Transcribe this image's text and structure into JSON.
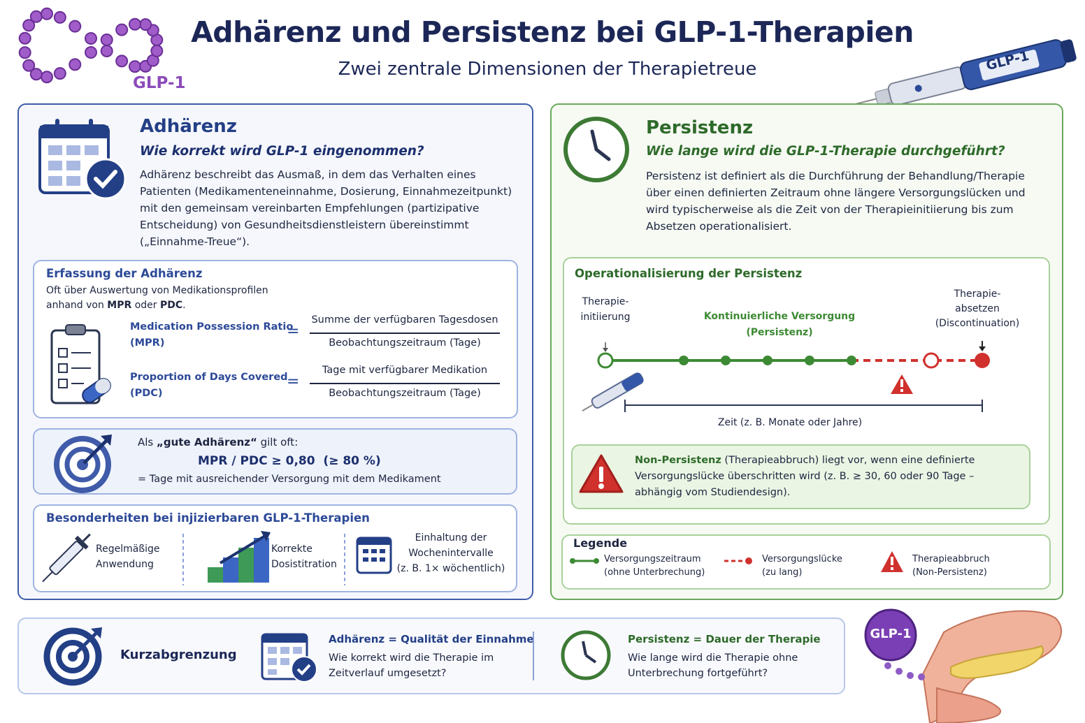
{
  "header": {
    "title": "Adhärenz und Persistenz bei GLP-1-Therapien",
    "subtitle": "Zwei zentrale Dimensionen der Therapietreue",
    "logo_label": "GLP-1",
    "pen_label": "GLP-1"
  },
  "adherence": {
    "heading": "Adhärenz",
    "question": "Wie korrekt wird GLP-1 eingenommen?",
    "description": "Adhärenz beschreibt das Ausmaß, in dem das Verhalten eines Patienten (Medikamenteneinnahme, Dosierung, Einnahmezeitpunkt) mit den gemeinsam vereinbarten Empfehlungen (partizipative Entscheidung) von Gesundheitsdienstleistern übereinstimmt („Einnahme-Treue“).",
    "measurement": {
      "heading": "Erfassung der Adhärenz",
      "intro": [
        "Oft über Auswertung von Medikationsprofilen anhand von ",
        "MPR",
        " oder ",
        "PDC",
        "."
      ],
      "formulas": [
        {
          "name": "Medication Possession Ratio",
          "abbr": "(MPR)",
          "operator": "=",
          "numerator": "Summe der verfügbaren Tagesdosen",
          "denominator": "Beobachtungszeitraum (Tage)"
        },
        {
          "name": "Proportion of Days Covered",
          "abbr": "(PDC)",
          "operator": "=",
          "numerator": "Tage mit verfügbarer Medikation",
          "denominator": "Beobachtungszeitraum (Tage)"
        }
      ]
    },
    "good_adherence": {
      "lead": [
        "Als ",
        "„gute Adhärenz“",
        " gilt oft:"
      ],
      "formula": "MPR / PDC ≥ 0,80  (≥ 80 %)",
      "note": "= Tage mit ausreichender Versorgung mit dem Medikament"
    },
    "features": {
      "heading": "Besonderheiten bei injizierbaren GLP-1-Therapien",
      "items": [
        [
          "Regelmäßige",
          "Anwendung"
        ],
        [
          "Korrekte",
          "Dosistitration"
        ],
        [
          "Einhaltung der",
          "Wochenintervalle",
          "(z. B. 1× wöchentlich)"
        ]
      ]
    }
  },
  "persistence": {
    "heading": "Persistenz",
    "question": "Wie lange wird die GLP-1-Therapie durchgeführt?",
    "description": "Persistenz ist definiert als die Durchführung der Behandlung/Therapie über einen definierten Zeitraum ohne längere Versorgungslücken und wird typischerweise als die Zeit von der Therapieinitiierung bis zum Absetzen operationalisiert.",
    "operationalization": {
      "heading": "Operationalisierung der Persistenz",
      "start": [
        "Therapie-",
        "initiierung"
      ],
      "middle": [
        "Kontinuierliche Versorgung",
        "(Persistenz)"
      ],
      "end": [
        "Therapie-",
        "absetzen",
        "(Discontinuation)"
      ],
      "axis": "Zeit (z. B. Monate oder Jahre)"
    },
    "non_persistence": [
      "Non-Persistenz",
      " (Therapieabbruch) liegt vor, wenn eine definierte Versorgungslücke überschritten wird (z. B. ≥ 30, 60 oder 90 Tage – abhängig vom Studiendesign)."
    ],
    "legend": {
      "heading": "Legende",
      "items": [
        [
          "Versorgungszeitraum",
          "(ohne Unterbrechung)"
        ],
        [
          "Versorgungslücke",
          "(zu lang)"
        ],
        [
          "Therapieabbruch",
          "(Non-Persistenz)"
        ]
      ]
    }
  },
  "summary": {
    "label": "Kurzabgrenzung",
    "adherence": {
      "key": "Adhärenz",
      "equation": " = Qualität der Einnahme",
      "text": "Wie korrekt wird die Therapie im Zeitverlauf umgesetzt?"
    },
    "persistence": {
      "key": "Persistenz",
      "equation": " = Dauer der Therapie",
      "text": "Wie lange wird die Therapie ohne Unterbrechung fortgeführt?"
    },
    "illustration_label": "GLP-1"
  }
}
